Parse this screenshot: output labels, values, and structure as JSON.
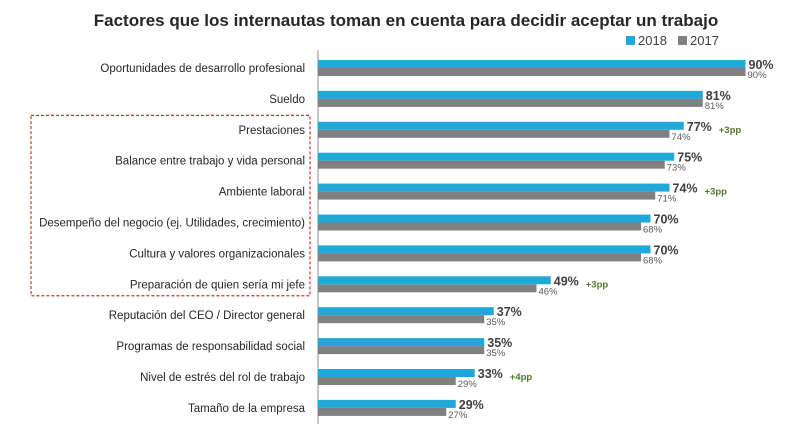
{
  "chart_data": {
    "type": "bar",
    "orientation": "horizontal",
    "title": "Factores que los internautas toman en cuenta para decidir aceptar un trabajo",
    "legend_position": "top-right",
    "xlim": [
      0,
      100
    ],
    "grid": false,
    "categories": [
      "Oportunidades de desarrollo profesional",
      "Sueldo",
      "Prestaciones",
      "Balance entre trabajo y vida personal",
      "Ambiente laboral",
      "Desempeño del negocio (ej. Utilidades, crecimiento)",
      "Cultura y valores organizacionales",
      "Preparación de quien sería mi jefe",
      "Reputación del CEO / Director general",
      "Programas de responsabilidad social",
      "Nivel de estrés del rol de trabajo",
      "Tamaño de la empresa"
    ],
    "series": [
      {
        "name": "2018",
        "color": "#1fa8d8",
        "values": [
          90,
          81,
          77,
          75,
          74,
          70,
          70,
          49,
          37,
          35,
          33,
          29
        ]
      },
      {
        "name": "2017",
        "color": "#808080",
        "values": [
          90,
          81,
          74,
          73,
          71,
          68,
          68,
          46,
          35,
          35,
          29,
          27
        ]
      }
    ],
    "value_suffix": "%",
    "annotations": [
      {
        "category_index": 2,
        "text": "+3pp"
      },
      {
        "category_index": 4,
        "text": "+3pp"
      },
      {
        "category_index": 7,
        "text": "+3pp"
      },
      {
        "category_index": 10,
        "text": "+4pp"
      }
    ],
    "annotation_color": "#4e7a2a",
    "highlight": {
      "from_index": 2,
      "to_index": 7,
      "style": "dashed",
      "color": "#c0392b"
    },
    "axis_color": "#8c8c8c"
  }
}
